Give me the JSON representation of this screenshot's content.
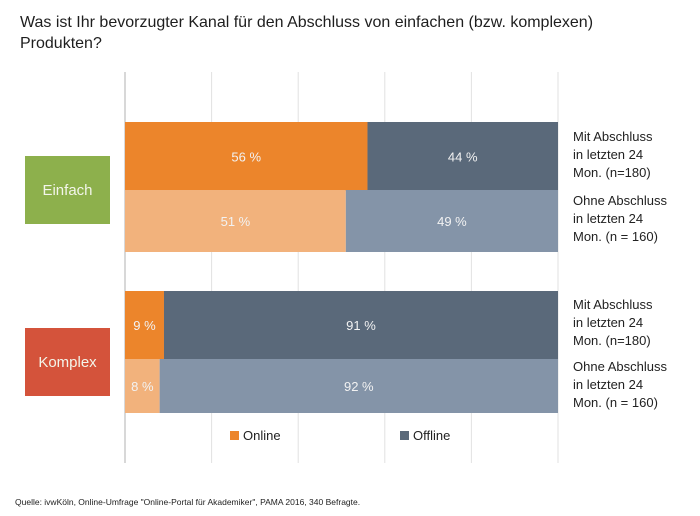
{
  "colors": {
    "online_dark": "#ec852b",
    "online_light": "#f2b27c",
    "offline_dark": "#5a697a",
    "offline_light": "#8494a8",
    "einfach": "#8db04c",
    "komplex": "#d4533b",
    "grid": "#e2e2e2"
  },
  "chart_data": {
    "type": "bar",
    "orientation": "horizontal",
    "stacked": true,
    "title": "Was ist Ihr bevorzugter Kanal für den Abschluss von einfachen (bzw. komplexen) Produkten?",
    "xlim": [
      0,
      100
    ],
    "unit": "%",
    "grid": true,
    "legend_position": "bottom",
    "legend": [
      "Online",
      "Offline"
    ],
    "groups": [
      {
        "name": "Einfach",
        "rows": [
          {
            "label": [
              "Mit Abschluss",
              "in letzten 24",
              "Mon. (n=180)"
            ],
            "online": 56,
            "offline": 44,
            "online_label": "56 %",
            "offline_label": "44 %"
          },
          {
            "label": [
              "Ohne Abschluss",
              "in letzten 24",
              "Mon. (n = 160)"
            ],
            "online": 51,
            "offline": 49,
            "online_label": "51 %",
            "offline_label": "49 %"
          }
        ]
      },
      {
        "name": "Komplex",
        "rows": [
          {
            "label": [
              "Mit Abschluss",
              "in letzten 24",
              "Mon. (n=180)"
            ],
            "online": 9,
            "offline": 91,
            "online_label": "9 %",
            "offline_label": "91 %"
          },
          {
            "label": [
              "Ohne Abschluss",
              "in letzten 24",
              "Mon. (n = 160)"
            ],
            "online": 8,
            "offline": 92,
            "online_label": "8 %",
            "offline_label": "92 %"
          }
        ]
      }
    ]
  },
  "header": {
    "title": "Was ist Ihr bevorzugter Kanal für den Abschluss von einfachen (bzw. komplexen) Produkten?"
  },
  "groups": {
    "einfach": "Einfach",
    "komplex": "Komplex"
  },
  "row_labels": {
    "einfach_mit": "Mit Abschluss\nin letzten 24\nMon. (n=180)",
    "einfach_ohne": "Ohne Abschluss\nin letzten 24\nMon. (n = 160)",
    "komplex_mit": "Mit Abschluss\nin letzten 24\nMon. (n=180)",
    "komplex_ohne": "Ohne Abschluss\nin letzten 24\nMon. (n = 160)"
  },
  "legend": {
    "online": "Online",
    "offline": "Offline"
  },
  "footer": {
    "source": "Quelle: ivwKöln, Online-Umfrage \"Online-Portal für Akademiker\", PAMA 2016, 340 Befragte."
  }
}
